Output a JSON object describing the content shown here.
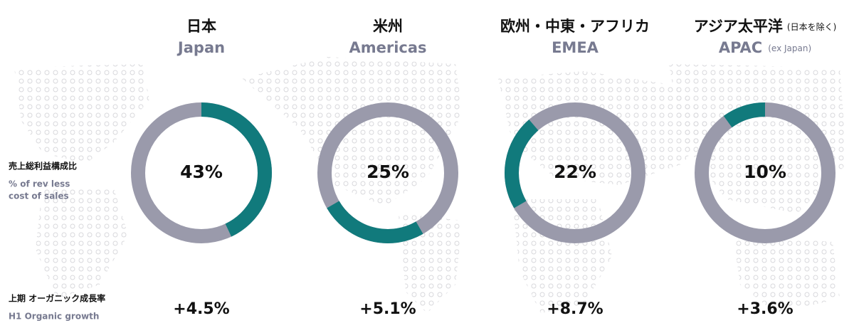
{
  "row_labels": {
    "share_jp": "売上総利益構成比",
    "share_en_1": "% of rev less",
    "share_en_2": "cost of sales",
    "growth_jp": "上期 オーガニック成長率",
    "growth_en": "H1 Organic growth"
  },
  "chart_data": [
    {
      "type": "donut",
      "title": "日本",
      "subtitle": "Japan",
      "value": 43,
      "value_label": "43%",
      "color": "#117a7c",
      "rest_color": "#9a9aab",
      "growth": 4.5,
      "growth_label": "+4.5%"
    },
    {
      "type": "donut",
      "title": "米州",
      "subtitle": "Americas",
      "value": 25,
      "value_label": "25%",
      "color": "#117a7c",
      "rest_color": "#9a9aab",
      "growth": 5.1,
      "growth_label": "+5.1%"
    },
    {
      "type": "donut",
      "title": "欧州・中東・アフリカ",
      "subtitle": "EMEA",
      "value": 22,
      "value_label": "22%",
      "color": "#117a7c",
      "rest_color": "#9a9aab",
      "growth": 8.7,
      "growth_label": "+8.7%"
    },
    {
      "type": "donut",
      "title": "アジア太平洋",
      "title_note": "(日本を除く)",
      "subtitle": "APAC",
      "subtitle_note": "(ex Japan)",
      "value": 10,
      "value_label": "10%",
      "color": "#117a7c",
      "rest_color": "#9a9aab",
      "growth": 3.6,
      "growth_label": "+3.6%"
    }
  ]
}
